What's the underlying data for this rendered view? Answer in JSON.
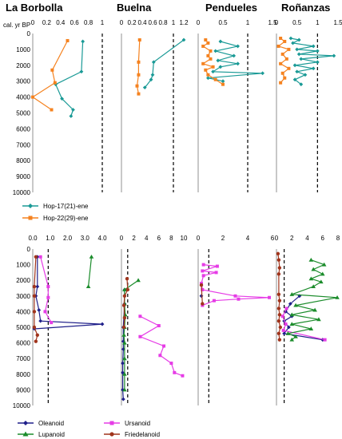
{
  "colors": {
    "teal": "#1a9a96",
    "orange": "#f5821f",
    "navy": "#1f1f8a",
    "green": "#1b8c2b",
    "magenta": "#e63ce6",
    "brown": "#a0341c"
  },
  "titles": [
    "La Borbolla",
    "Buelna",
    "Pendueles",
    "Roñanzas"
  ],
  "ylabel": "cal. yr BP",
  "legend_top": [
    "Hop-17(21)-ene",
    "Hop-22(29)-ene"
  ],
  "legend_bottom": [
    "Oleanoid",
    "Ursanoid",
    "Lupanoid",
    "Friedelanoid"
  ],
  "chart_data": [
    {
      "type": "line",
      "title": "La Borbolla",
      "ylim": [
        0,
        10000
      ],
      "xlim": [
        0,
        1.0
      ],
      "xticks": [
        "0",
        "0.2",
        "0.4",
        "0.6",
        "0.8",
        "1"
      ],
      "ref_x": 1.0,
      "series": [
        {
          "name": "Hop-17(21)-ene",
          "color": "teal",
          "marker": "diamond",
          "points": [
            [
              0.72,
              500
            ],
            [
              0.7,
              2400
            ],
            [
              0.33,
              3200
            ],
            [
              0.42,
              4100
            ],
            [
              0.58,
              4800
            ],
            [
              0.55,
              5200
            ]
          ]
        },
        {
          "name": "Hop-22(29)-ene",
          "color": "orange",
          "marker": "square",
          "points": [
            [
              0.5,
              450
            ],
            [
              0.28,
              2300
            ],
            [
              0.32,
              3100
            ],
            [
              0.0,
              4000
            ],
            [
              0.27,
              4800
            ]
          ]
        }
      ]
    },
    {
      "type": "line",
      "title": "Buelna",
      "ylim": [
        0,
        10000
      ],
      "xlim": [
        0,
        1.2
      ],
      "xticks": [
        "0",
        "0.2",
        "0.4",
        "0.6",
        "0.8",
        "1",
        "1.2"
      ],
      "ref_x": 1.0,
      "series": [
        {
          "name": "Hop-17(21)-ene",
          "color": "teal",
          "marker": "diamond",
          "points": [
            [
              1.2,
              400
            ],
            [
              0.62,
              1800
            ],
            [
              0.6,
              2600
            ],
            [
              0.57,
              2900
            ],
            [
              0.45,
              3400
            ]
          ]
        },
        {
          "name": "Hop-22(29)-ene",
          "color": "orange",
          "marker": "square",
          "points": [
            [
              0.35,
              400
            ],
            [
              0.33,
              1800
            ],
            [
              0.33,
              2600
            ],
            [
              0.3,
              3300
            ],
            [
              0.33,
              3800
            ]
          ]
        }
      ]
    },
    {
      "type": "line",
      "title": "Pendueles",
      "ylim": [
        0,
        10000
      ],
      "xlim": [
        0,
        1.5
      ],
      "xticks": [
        "0",
        "0.5",
        "1",
        "1.5"
      ],
      "ref_x": 1.0,
      "series": [
        {
          "name": "Hop-17(21)-ene",
          "color": "teal",
          "marker": "diamond",
          "points": [
            [
              0.45,
              500
            ],
            [
              0.8,
              800
            ],
            [
              0.35,
              1100
            ],
            [
              0.72,
              1400
            ],
            [
              0.4,
              1700
            ],
            [
              0.8,
              1900
            ],
            [
              0.45,
              2100
            ],
            [
              0.3,
              2400
            ],
            [
              1.3,
              2500
            ],
            [
              0.2,
              2800
            ],
            [
              0.5,
              3000
            ]
          ]
        },
        {
          "name": "Hop-22(29)-ene",
          "color": "orange",
          "marker": "square",
          "points": [
            [
              0.15,
              400
            ],
            [
              0.2,
              600
            ],
            [
              0.1,
              800
            ],
            [
              0.25,
              1100
            ],
            [
              0.2,
              1400
            ],
            [
              0.25,
              1600
            ],
            [
              0.1,
              1900
            ],
            [
              0.3,
              2100
            ],
            [
              0.15,
              2300
            ],
            [
              0.2,
              2600
            ],
            [
              0.35,
              2900
            ],
            [
              0.5,
              3200
            ]
          ]
        }
      ]
    },
    {
      "type": "line",
      "title": "Roñanzas",
      "ylim": [
        0,
        10000
      ],
      "xlim": [
        0,
        1.5
      ],
      "xticks": [
        "0",
        "0.5",
        "1",
        "1.5"
      ],
      "ref_x": 1.0,
      "series": [
        {
          "name": "Hop-17(21)-ene",
          "color": "teal",
          "marker": "diamond",
          "points": [
            [
              0.35,
              300
            ],
            [
              0.55,
              400
            ],
            [
              0.4,
              600
            ],
            [
              0.9,
              800
            ],
            [
              0.5,
              1000
            ],
            [
              1.0,
              1100
            ],
            [
              0.55,
              1300
            ],
            [
              1.4,
              1400
            ],
            [
              0.6,
              1600
            ],
            [
              1.0,
              1800
            ],
            [
              0.45,
              2000
            ],
            [
              0.9,
              2200
            ],
            [
              0.5,
              2400
            ],
            [
              0.7,
              2600
            ],
            [
              0.45,
              2900
            ],
            [
              0.6,
              3200
            ]
          ]
        },
        {
          "name": "Hop-22(29)-ene",
          "color": "orange",
          "marker": "square",
          "points": [
            [
              0.1,
              300
            ],
            [
              0.2,
              500
            ],
            [
              0.05,
              800
            ],
            [
              0.3,
              1000
            ],
            [
              0.15,
              1300
            ],
            [
              0.25,
              1600
            ],
            [
              0.1,
              1900
            ],
            [
              0.3,
              2200
            ],
            [
              0.15,
              2500
            ],
            [
              0.2,
              2800
            ],
            [
              0.1,
              3100
            ]
          ]
        }
      ]
    },
    {
      "type": "line",
      "title": "La Borbolla",
      "ylim": [
        0,
        10000
      ],
      "xlim": [
        0,
        4.5
      ],
      "xticks": [
        "0.0",
        "1.0",
        "2.0",
        "3.0",
        "4.0"
      ],
      "ref_x": 1.0,
      "series": [
        {
          "name": "Oleanoid",
          "color": "navy",
          "marker": "diamond",
          "points": [
            [
              0.3,
              500
            ],
            [
              0.3,
              2400
            ],
            [
              0.2,
              3000
            ],
            [
              0.4,
              3900
            ],
            [
              0.5,
              4600
            ],
            [
              4.5,
              4800
            ],
            [
              0.1,
              5100
            ]
          ]
        },
        {
          "name": "Ursanoid",
          "color": "magenta",
          "marker": "square",
          "points": [
            [
              0.5,
              500
            ],
            [
              1.0,
              2400
            ],
            [
              1.0,
              3100
            ],
            [
              0.8,
              4000
            ],
            [
              1.2,
              4700
            ]
          ]
        },
        {
          "name": "Lupanoid",
          "color": "green",
          "marker": "triangle",
          "points": [
            [
              3.8,
              500
            ],
            [
              3.6,
              2400
            ]
          ]
        },
        {
          "name": "Friedelanoid",
          "color": "brown",
          "marker": "circle",
          "points": [
            [
              0.2,
              500
            ],
            [
              0.1,
              2400
            ],
            [
              0.1,
              3000
            ],
            [
              0.1,
              4000
            ],
            [
              0.1,
              5000
            ],
            [
              0.3,
              5500
            ],
            [
              0.2,
              5900
            ]
          ]
        }
      ]
    },
    {
      "type": "line",
      "title": "Buelna",
      "ylim": [
        0,
        10000
      ],
      "xlim": [
        0,
        10
      ],
      "xticks": [
        "0",
        "2",
        "4",
        "6",
        "8",
        "10"
      ],
      "ref_x": 1.0,
      "series": [
        {
          "name": "Oleanoid",
          "color": "navy",
          "marker": "diamond",
          "points": [
            [
              0.5,
              2600
            ],
            [
              0.5,
              3500
            ],
            [
              0.3,
              5000
            ],
            [
              0.3,
              5900
            ],
            [
              0.3,
              6400
            ],
            [
              0.2,
              7300
            ],
            [
              0.2,
              7900
            ],
            [
              0.2,
              9000
            ],
            [
              0.3,
              9600
            ]
          ]
        },
        {
          "name": "Ursanoid",
          "color": "magenta",
          "marker": "square",
          "points": [
            [
              3.0,
              4300
            ],
            [
              6.0,
              4900
            ],
            [
              3.0,
              5600
            ],
            [
              6.8,
              6200
            ],
            [
              6.2,
              6800
            ],
            [
              8.0,
              7300
            ],
            [
              8.5,
              7900
            ],
            [
              9.8,
              8100
            ]
          ]
        },
        {
          "name": "Lupanoid",
          "color": "green",
          "marker": "triangle",
          "points": [
            [
              2.7,
              2000
            ],
            [
              0.5,
              2600
            ],
            [
              0.5,
              3500
            ],
            [
              0.6,
              4200
            ],
            [
              0.5,
              5000
            ],
            [
              0.4,
              5500
            ],
            [
              0.5,
              6000
            ],
            [
              0.5,
              7000
            ],
            [
              0.5,
              8000
            ],
            [
              0.5,
              9000
            ]
          ]
        },
        {
          "name": "Friedelanoid",
          "color": "brown",
          "marker": "circle",
          "points": [
            [
              0.9,
              1900
            ],
            [
              1.0,
              2600
            ],
            [
              0.5,
              3000
            ],
            [
              0.4,
              3600
            ],
            [
              0.5,
              4400
            ],
            [
              0.4,
              5000
            ]
          ]
        }
      ]
    },
    {
      "type": "line",
      "title": "Pendueles",
      "ylim": [
        0,
        10000
      ],
      "xlim": [
        0,
        7
      ],
      "xticks": [
        "0",
        "2",
        "4",
        "6"
      ],
      "ref_x": 1.0,
      "series": [
        {
          "name": "Oleanoid",
          "color": "navy",
          "marker": "diamond",
          "points": [
            [
              0.3,
              3000
            ]
          ]
        },
        {
          "name": "Ursanoid",
          "color": "magenta",
          "marker": "square",
          "points": [
            [
              0.5,
              1000
            ],
            [
              1.8,
              1100
            ],
            [
              0.4,
              1400
            ],
            [
              1.7,
              1500
            ],
            [
              0.5,
              1700
            ],
            [
              0.3,
              2200
            ],
            [
              0.4,
              2600
            ],
            [
              3.5,
              3000
            ],
            [
              6.7,
              3100
            ],
            [
              3.8,
              3200
            ],
            [
              1.5,
              3300
            ],
            [
              0.4,
              3600
            ]
          ]
        },
        {
          "name": "Friedelanoid",
          "color": "brown",
          "marker": "circle",
          "points": [
            [
              0.3,
              2300
            ],
            [
              0.4,
              3500
            ]
          ]
        }
      ]
    },
    {
      "type": "line",
      "title": "Roñanzas",
      "ylim": [
        0,
        10000
      ],
      "xlim": [
        0,
        8
      ],
      "xticks": [
        "0",
        "2",
        "4",
        "6",
        "8"
      ],
      "ref_x": 1.0,
      "series": [
        {
          "name": "Oleanoid",
          "color": "navy",
          "marker": "diamond",
          "points": [
            [
              3.0,
              3000
            ],
            [
              1.8,
              3500
            ],
            [
              1.2,
              4000
            ],
            [
              2.0,
              4300
            ],
            [
              1.0,
              4600
            ],
            [
              1.6,
              5000
            ],
            [
              1.0,
              5400
            ],
            [
              6.0,
              5800
            ]
          ]
        },
        {
          "name": "Ursanoid",
          "color": "magenta",
          "marker": "square",
          "points": [
            [
              1.3,
              3800
            ],
            [
              0.8,
              4300
            ],
            [
              1.2,
              4800
            ],
            [
              0.9,
              5200
            ],
            [
              6.3,
              5800
            ]
          ]
        },
        {
          "name": "Lupanoid",
          "color": "green",
          "marker": "triangle",
          "points": [
            [
              4.5,
              700
            ],
            [
              6.2,
              1000
            ],
            [
              4.8,
              1300
            ],
            [
              6.0,
              1600
            ],
            [
              4.5,
              1900
            ],
            [
              5.8,
              2100
            ],
            [
              4.8,
              2400
            ],
            [
              2.0,
              2900
            ],
            [
              7.9,
              3100
            ],
            [
              2.5,
              3600
            ],
            [
              5.0,
              3900
            ],
            [
              2.0,
              4200
            ],
            [
              5.5,
              4500
            ],
            [
              2.0,
              4800
            ],
            [
              4.5,
              5100
            ],
            [
              1.5,
              5400
            ],
            [
              2.5,
              5600
            ],
            [
              2.0,
              5800
            ]
          ]
        },
        {
          "name": "Friedelanoid",
          "color": "brown",
          "marker": "circle",
          "points": [
            [
              0.2,
              300
            ],
            [
              0.3,
              700
            ],
            [
              0.4,
              1200
            ],
            [
              0.3,
              1600
            ],
            [
              0.3,
              2900
            ],
            [
              0.4,
              3300
            ],
            [
              0.3,
              3800
            ],
            [
              0.4,
              4200
            ],
            [
              0.3,
              4600
            ],
            [
              0.5,
              5000
            ],
            [
              0.3,
              5400
            ],
            [
              0.4,
              5800
            ]
          ]
        }
      ]
    }
  ]
}
